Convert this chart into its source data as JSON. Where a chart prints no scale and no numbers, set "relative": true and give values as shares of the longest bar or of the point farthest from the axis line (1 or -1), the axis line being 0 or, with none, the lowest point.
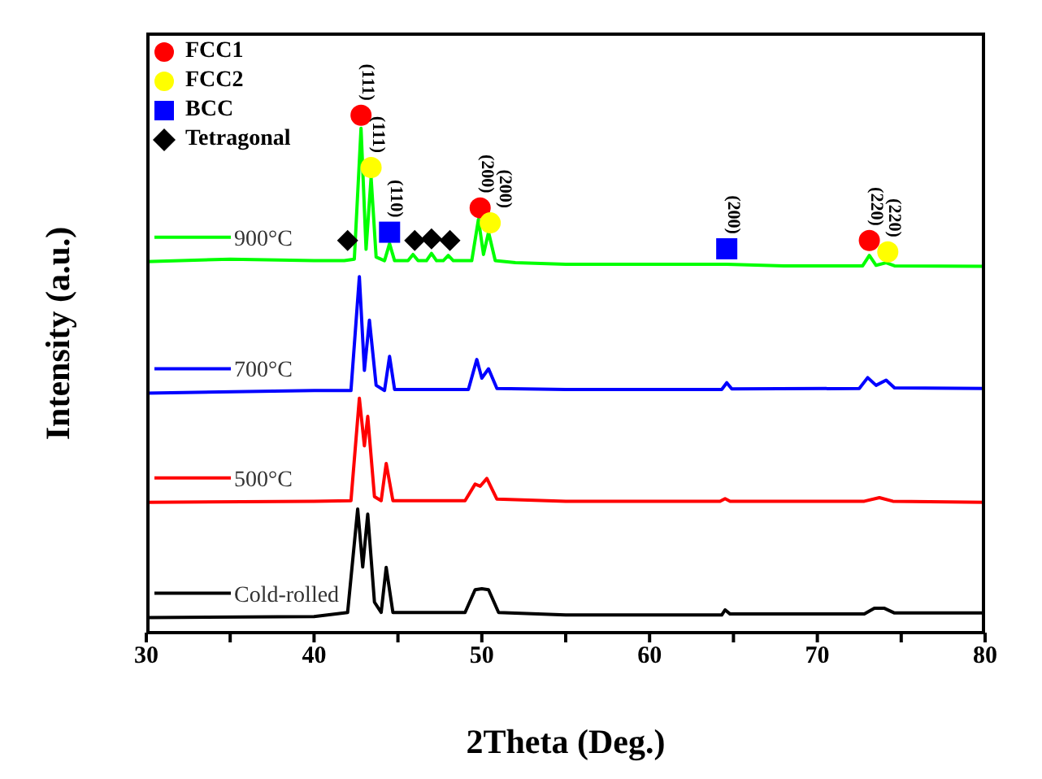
{
  "chart_data": {
    "type": "line",
    "relative": true,
    "xlabel": "2Theta (Deg.)",
    "ylabel": "Intensity (a.u.)",
    "xlim": [
      30,
      80
    ],
    "xticks": [
      30,
      {
        "value": 35,
        "label": null
      },
      40,
      {
        "value": 45,
        "label": null
      },
      50,
      {
        "value": 55,
        "label": null
      },
      60,
      {
        "value": 65,
        "label": null
      },
      70,
      {
        "value": 75,
        "label": null
      },
      80
    ],
    "grid": false,
    "legend": "top left",
    "marker": "none",
    "line_style": "solid",
    "series": [
      {
        "name": "Cold-rolled",
        "color": "#000000",
        "x": [
          30,
          40,
          42.0,
          42.6,
          42.9,
          43.2,
          43.6,
          44.0,
          44.3,
          44.7,
          49.0,
          49.6,
          50.0,
          50.4,
          51.0,
          55,
          64.3,
          64.5,
          64.8,
          72.8,
          73.4,
          74.0,
          74.6,
          80
        ],
        "values": [
          0.029,
          0.031,
          0.039,
          0.239,
          0.127,
          0.229,
          0.059,
          0.039,
          0.126,
          0.039,
          0.039,
          0.083,
          0.085,
          0.083,
          0.039,
          0.034,
          0.034,
          0.044,
          0.036,
          0.036,
          0.047,
          0.047,
          0.038,
          0.038
        ]
      },
      {
        "name": "500°C",
        "color": "#ff0000",
        "x": [
          30,
          40,
          42.2,
          42.7,
          43.0,
          43.2,
          43.6,
          44.0,
          44.3,
          44.7,
          49.0,
          49.6,
          49.9,
          50.3,
          50.9,
          55,
          64.2,
          64.5,
          64.8,
          72.8,
          73.7,
          74.5,
          80
        ],
        "values": [
          0.252,
          0.254,
          0.255,
          0.453,
          0.361,
          0.418,
          0.263,
          0.255,
          0.327,
          0.255,
          0.255,
          0.287,
          0.283,
          0.298,
          0.258,
          0.254,
          0.254,
          0.259,
          0.254,
          0.254,
          0.261,
          0.254,
          0.252
        ]
      },
      {
        "name": "700°C",
        "color": "#0000ff",
        "x": [
          30,
          40,
          42.2,
          42.7,
          43.0,
          43.3,
          43.7,
          44.2,
          44.5,
          44.8,
          49.2,
          49.7,
          50.0,
          50.4,
          50.9,
          55,
          64.3,
          64.6,
          64.9,
          72.5,
          73.0,
          73.5,
          74.1,
          74.6,
          80
        ],
        "values": [
          0.463,
          0.468,
          0.468,
          0.688,
          0.507,
          0.604,
          0.478,
          0.468,
          0.534,
          0.47,
          0.47,
          0.528,
          0.492,
          0.51,
          0.472,
          0.47,
          0.47,
          0.483,
          0.471,
          0.472,
          0.493,
          0.478,
          0.488,
          0.473,
          0.472
        ]
      },
      {
        "name": "900°C",
        "color": "#00ff00",
        "x": [
          30,
          35,
          40,
          41.8,
          42.4,
          42.8,
          43.1,
          43.4,
          43.7,
          44.2,
          44.5,
          44.8,
          45.6,
          45.9,
          46.2,
          46.7,
          47.0,
          47.3,
          47.7,
          48.0,
          48.3,
          49.4,
          49.8,
          50.1,
          50.4,
          50.8,
          52,
          55,
          60,
          64.6,
          68,
          72.7,
          73.1,
          73.5,
          74.1,
          74.6,
          80
        ],
        "values": [
          0.717,
          0.722,
          0.719,
          0.719,
          0.722,
          0.975,
          0.741,
          0.88,
          0.726,
          0.719,
          0.752,
          0.719,
          0.719,
          0.731,
          0.719,
          0.719,
          0.733,
          0.719,
          0.719,
          0.729,
          0.719,
          0.719,
          0.799,
          0.731,
          0.774,
          0.719,
          0.715,
          0.712,
          0.712,
          0.712,
          0.709,
          0.709,
          0.729,
          0.71,
          0.715,
          0.709,
          0.708
        ]
      },
      {
        "type": "scatter",
        "name": "FCC1",
        "color": "#ff0000",
        "marker": "circle",
        "x": [
          42.8,
          49.9,
          73.1
        ],
        "values": [
          1.0,
          0.821,
          0.758
        ]
      },
      {
        "type": "scatter",
        "name": "FCC2",
        "color": "#ffff00",
        "marker": "circle",
        "x": [
          43.4,
          50.5,
          74.2
        ],
        "values": [
          0.899,
          0.792,
          0.736
        ]
      },
      {
        "type": "scatter",
        "name": "BCC",
        "color": "#0000ff",
        "marker": "square",
        "x": [
          44.5,
          64.6
        ],
        "values": [
          0.774,
          0.742
        ]
      },
      {
        "type": "scatter",
        "name": "Tetragonal",
        "color": "#000000",
        "marker": "diamond",
        "x": [
          42.0,
          46.0,
          47.0,
          48.1
        ],
        "values": [
          0.758,
          0.758,
          0.761,
          0.758
        ]
      }
    ],
    "annotations": [
      {
        "text": "(111)",
        "x": 42.8,
        "y": 1.0
      },
      {
        "text": "(111)",
        "x": 43.4,
        "y": 0.899
      },
      {
        "text": "(110)",
        "x": 44.5,
        "y": 0.774
      },
      {
        "text": "(200)",
        "x": 49.9,
        "y": 0.821
      },
      {
        "text": "(200)",
        "x": 50.5,
        "y": 0.792
      },
      {
        "text": "(200)",
        "x": 64.6,
        "y": 0.742
      },
      {
        "text": "(220)",
        "x": 73.1,
        "y": 0.758
      },
      {
        "text": "(220)",
        "x": 74.2,
        "y": 0.736
      }
    ]
  }
}
